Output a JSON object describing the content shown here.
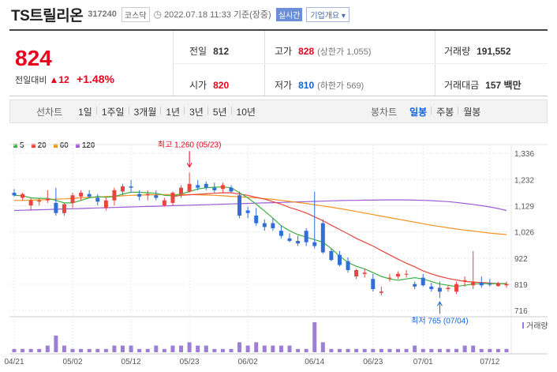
{
  "header": {
    "stock_name": "TS트릴리온",
    "stock_code": "317240",
    "market_badge": "코스닥",
    "timestamp": "2022.07.18 11:33",
    "time_basis": "기준(장중)",
    "live_badge": "실시간",
    "company_info": "기업개요"
  },
  "quote": {
    "price": "824",
    "change_label": "전일대비",
    "change_arrow": "▲",
    "change_value": "12",
    "change_percent": "+1.48%",
    "prev_close_label": "전일",
    "prev_close": "812",
    "open_label": "시가",
    "open": "820",
    "high_label": "고가",
    "high": "828",
    "upper_limit": "(상한가 1,055)",
    "low_label": "저가",
    "low": "810",
    "lower_limit": "(하한가 569)",
    "volume_label": "거래량",
    "volume": "191,552",
    "amount_label": "거래대금",
    "amount": "157 백만"
  },
  "period_bar": {
    "line_label": "선차트",
    "periods": [
      "1일",
      "1주일",
      "3개월",
      "1년",
      "3년",
      "5년",
      "10년"
    ],
    "candle_label": "봉차트",
    "candle_types": [
      "일봉",
      "주봉",
      "월봉"
    ],
    "active_candle": "일봉"
  },
  "chart_data": {
    "type": "candlestick",
    "legend": [
      {
        "name": "5",
        "color": "#3cb043"
      },
      {
        "name": "20",
        "color": "#e8453c"
      },
      {
        "name": "60",
        "color": "#f29124"
      },
      {
        "name": "120",
        "color": "#9c5cd4"
      }
    ],
    "y_ticks": [
      "1,336",
      "1,232",
      "1,129",
      "1,026",
      "922",
      "819",
      "716"
    ],
    "y_tick_values": [
      1336,
      1232,
      1129,
      1026,
      922,
      819,
      716
    ],
    "ylim": [
      716,
      1336
    ],
    "x_ticks": [
      "04/21",
      "05/02",
      "05/12",
      "05/23",
      "06/02",
      "06/14",
      "06/23",
      "07/01",
      "07/12"
    ],
    "x_tick_index": [
      0,
      7,
      14,
      21,
      28,
      36,
      43,
      49,
      57
    ],
    "max_annotation": "최고 1,260 (05/23)",
    "max_index": 21,
    "max_value": 1260,
    "min_annotation": "최저 765 (07/04)",
    "min_index": 51,
    "min_value": 765,
    "volume_label": "거래량",
    "candles": [
      [
        1180,
        1195,
        1165,
        1170
      ],
      [
        1160,
        1180,
        1150,
        1175
      ],
      [
        1130,
        1160,
        1110,
        1150
      ],
      [
        1145,
        1160,
        1130,
        1150
      ],
      [
        1150,
        1190,
        1140,
        1155
      ],
      [
        1140,
        1200,
        1090,
        1100
      ],
      [
        1100,
        1140,
        1090,
        1135
      ],
      [
        1140,
        1180,
        1120,
        1170
      ],
      [
        1165,
        1190,
        1150,
        1180
      ],
      [
        1175,
        1190,
        1160,
        1165
      ],
      [
        1160,
        1175,
        1130,
        1145
      ],
      [
        1120,
        1160,
        1110,
        1150
      ],
      [
        1150,
        1200,
        1130,
        1190
      ],
      [
        1185,
        1215,
        1170,
        1205
      ],
      [
        1205,
        1230,
        1180,
        1200
      ],
      [
        1175,
        1190,
        1150,
        1165
      ],
      [
        1170,
        1190,
        1150,
        1175
      ],
      [
        1170,
        1190,
        1150,
        1160
      ],
      [
        1130,
        1160,
        1125,
        1150
      ],
      [
        1140,
        1185,
        1130,
        1180
      ],
      [
        1175,
        1210,
        1160,
        1200
      ],
      [
        1185,
        1260,
        1180,
        1215
      ],
      [
        1210,
        1230,
        1190,
        1200
      ],
      [
        1215,
        1225,
        1190,
        1200
      ],
      [
        1200,
        1220,
        1180,
        1190
      ],
      [
        1195,
        1220,
        1180,
        1210
      ],
      [
        1200,
        1210,
        1180,
        1185
      ],
      [
        1170,
        1185,
        1080,
        1090
      ],
      [
        1110,
        1125,
        1080,
        1100
      ],
      [
        1090,
        1120,
        1050,
        1060
      ],
      [
        1060,
        1075,
        1030,
        1045
      ],
      [
        1060,
        1080,
        1030,
        1040
      ],
      [
        1030,
        1050,
        1000,
        1010
      ],
      [
        1000,
        1020,
        985,
        990
      ],
      [
        990,
        1010,
        970,
        980
      ],
      [
        1030,
        1040,
        970,
        985
      ],
      [
        985,
        1185,
        960,
        970
      ],
      [
        1060,
        1075,
        940,
        945
      ],
      [
        950,
        960,
        910,
        915
      ],
      [
        935,
        950,
        890,
        895
      ],
      [
        910,
        925,
        865,
        875
      ],
      [
        850,
        880,
        840,
        875
      ],
      [
        860,
        880,
        845,
        865
      ],
      [
        840,
        860,
        790,
        800
      ],
      [
        785,
        810,
        775,
        790
      ],
      [
        845,
        860,
        830,
        845
      ],
      [
        850,
        870,
        840,
        860
      ],
      [
        860,
        875,
        845,
        860
      ],
      [
        820,
        830,
        800,
        810
      ],
      [
        845,
        860,
        810,
        815
      ],
      [
        810,
        825,
        790,
        800
      ],
      [
        805,
        830,
        765,
        790
      ],
      [
        800,
        815,
        790,
        805
      ],
      [
        790,
        830,
        780,
        820
      ],
      [
        830,
        850,
        810,
        835
      ],
      [
        815,
        950,
        800,
        830
      ],
      [
        825,
        850,
        805,
        815
      ],
      [
        820,
        840,
        810,
        818
      ],
      [
        812,
        828,
        810,
        824
      ],
      [
        815,
        830,
        805,
        820
      ]
    ],
    "volumes": [
      1,
      1,
      1,
      1,
      2,
      5,
      2,
      1,
      1,
      1,
      1,
      1,
      2,
      2,
      2,
      1,
      1,
      2,
      1,
      2,
      2,
      3,
      2,
      2,
      1,
      1,
      1,
      3,
      2,
      3,
      2,
      2,
      2,
      2,
      1,
      1,
      9,
      3,
      1,
      1,
      1,
      1,
      1,
      1,
      1,
      1,
      1,
      1,
      2,
      1,
      1,
      1,
      1,
      1,
      2,
      2,
      1,
      1,
      1,
      1
    ],
    "ma5": [
      1170,
      1168,
      1160,
      1158,
      1158,
      1150,
      1140,
      1140,
      1150,
      1160,
      1165,
      1162,
      1165,
      1175,
      1182,
      1182,
      1180,
      1178,
      1170,
      1168,
      1175,
      1185,
      1195,
      1200,
      1202,
      1203,
      1200,
      1180,
      1160,
      1135,
      1108,
      1080,
      1050,
      1030,
      1015,
      1005,
      995,
      985,
      960,
      930,
      905,
      890,
      880,
      865,
      850,
      840,
      835,
      840,
      845,
      840,
      830,
      820,
      815,
      810,
      815,
      820,
      822,
      822,
      822,
      822
    ],
    "ma20": [
      null,
      null,
      null,
      null,
      null,
      null,
      null,
      null,
      null,
      null,
      null,
      null,
      null,
      null,
      null,
      null,
      null,
      null,
      null,
      1165,
      1170,
      1172,
      1174,
      1176,
      1178,
      1180,
      1180,
      1175,
      1170,
      1162,
      1155,
      1145,
      1135,
      1122,
      1112,
      1100,
      1085,
      1070,
      1052,
      1035,
      1018,
      1000,
      985,
      970,
      952,
      935,
      918,
      902,
      888,
      872,
      860,
      850,
      842,
      836,
      830,
      828,
      826,
      824,
      822,
      821
    ],
    "ma60": [
      1150,
      1150,
      1151,
      1152,
      1153,
      1155,
      1156,
      1158,
      1160,
      1162,
      1163,
      1165,
      1166,
      1168,
      1170,
      1171,
      1172,
      1172,
      1173,
      1173,
      1173,
      1173,
      1172,
      1171,
      1170,
      1168,
      1166,
      1164,
      1162,
      1160,
      1157,
      1154,
      1150,
      1146,
      1142,
      1138,
      1133,
      1128,
      1123,
      1118,
      1112,
      1106,
      1100,
      1094,
      1088,
      1082,
      1076,
      1070,
      1064,
      1058,
      1052,
      1047,
      1042,
      1037,
      1033,
      1029,
      1025,
      1021,
      1018,
      1015
    ],
    "ma120": [
      1110,
      1111,
      1112,
      1113,
      1114,
      1115,
      1116,
      1117,
      1118,
      1119,
      1120,
      1121,
      1122,
      1123,
      1124,
      1125,
      1126,
      1127,
      1128,
      1129,
      1130,
      1131,
      1132,
      1133,
      1134,
      1135,
      1136,
      1137,
      1138,
      1139,
      1140,
      1141,
      1142,
      1143,
      1144,
      1145,
      1146,
      1147,
      1148,
      1149,
      1150,
      1150,
      1151,
      1151,
      1152,
      1152,
      1152,
      1152,
      1151,
      1150,
      1149,
      1147,
      1145,
      1142,
      1138,
      1134,
      1129,
      1124,
      1118,
      1110
    ]
  }
}
